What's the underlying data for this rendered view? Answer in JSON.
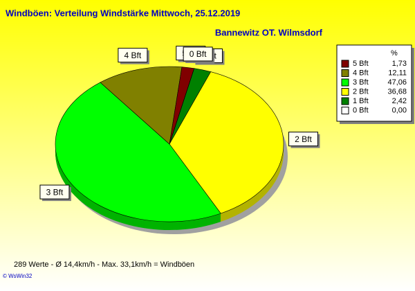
{
  "chart_data": {
    "type": "pie",
    "title": "Windböen: Verteilung Windstärke  Mittwoch, 25.12.2019",
    "subtitle": "Bannewitz OT. Wilmsdorf",
    "legend_header": "%",
    "categories": [
      "1 Bft",
      "2 Bft",
      "3 Bft",
      "4 Bft",
      "5 Bft",
      "0 Bft"
    ],
    "values": [
      2.42,
      36.68,
      47.06,
      12.11,
      1.73,
      0.0
    ],
    "value_labels": [
      "2,42",
      "36,68",
      "47,06",
      "12,11",
      "1,73",
      "0,00"
    ],
    "colors": [
      "#008000",
      "#ffff00",
      "#00ff00",
      "#808000",
      "#800000",
      "#ffffff"
    ],
    "legend_order": [
      4,
      3,
      2,
      1,
      0,
      5
    ],
    "footer": "289 Werte   -   Ø 14,4km/h  -  Max. 33,1km/h = Windböen",
    "credit": "© WsWin32"
  }
}
